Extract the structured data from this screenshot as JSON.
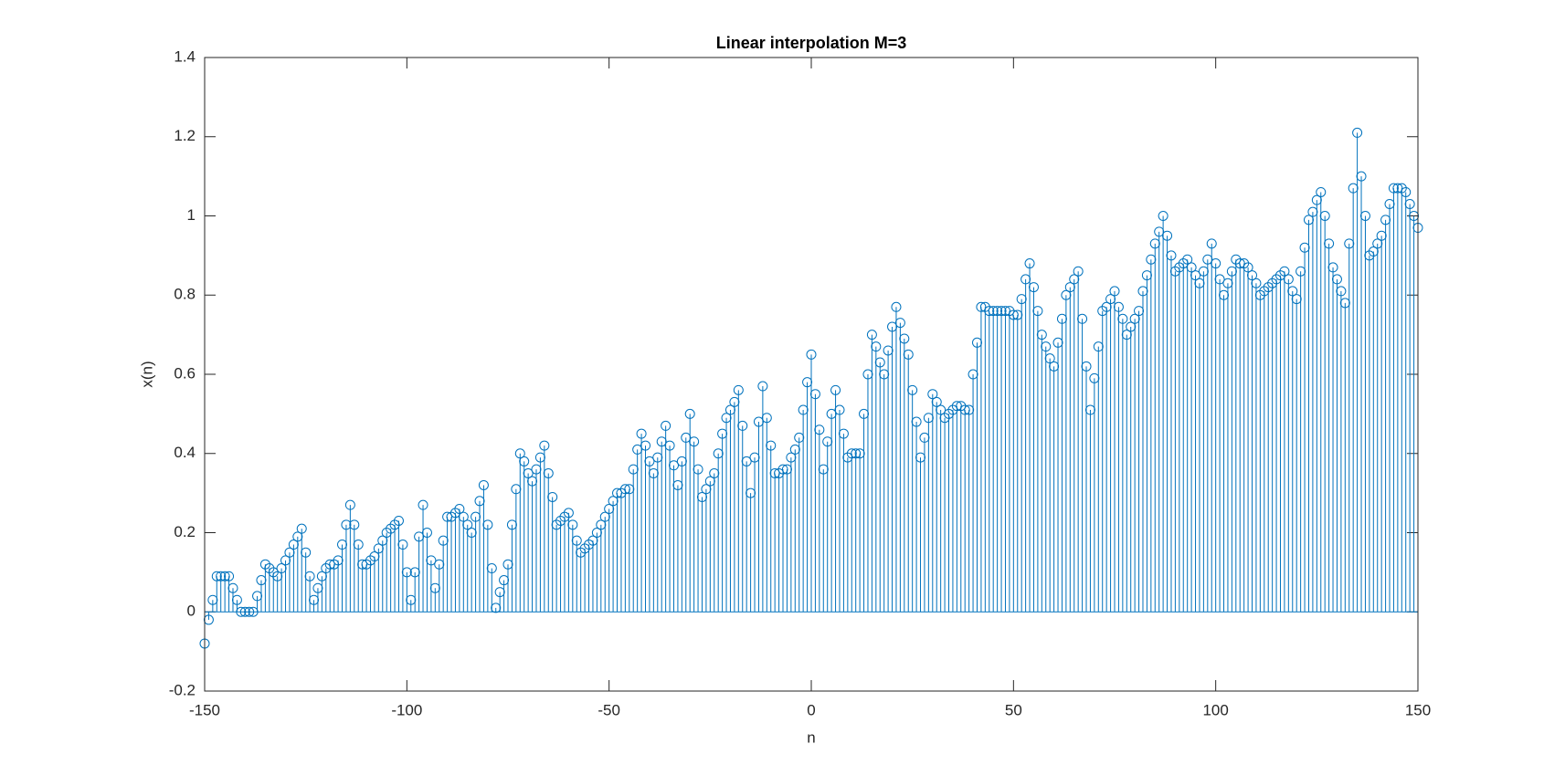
{
  "chart_data": {
    "type": "stem",
    "title": "Linear interpolation M=3",
    "xlabel": "n",
    "ylabel": "x(n)",
    "x": [
      -150,
      -149,
      -148,
      -147,
      -146,
      -145,
      -144,
      -143,
      -142,
      -141,
      -140,
      -139,
      -138,
      -137,
      -136,
      -135,
      -134,
      -133,
      -132,
      -131,
      -130,
      -129,
      -128,
      -127,
      -126,
      -125,
      -124,
      -123,
      -122,
      -121,
      -120,
      -119,
      -118,
      -117,
      -116,
      -115,
      -114,
      -113,
      -112,
      -111,
      -110,
      -109,
      -108,
      -107,
      -106,
      -105,
      -104,
      -103,
      -102,
      -101,
      -100,
      -99,
      -98,
      -97,
      -96,
      -95,
      -94,
      -93,
      -92,
      -91,
      -90,
      -89,
      -88,
      -87,
      -86,
      -85,
      -84,
      -83,
      -82,
      -81,
      -80,
      -79,
      -78,
      -77,
      -76,
      -75,
      -74,
      -73,
      -72,
      -71,
      -70,
      -69,
      -68,
      -67,
      -66,
      -65,
      -64,
      -63,
      -62,
      -61,
      -60,
      -59,
      -58,
      -57,
      -56,
      -55,
      -54,
      -53,
      -52,
      -51,
      -50,
      -49,
      -48,
      -47,
      -46,
      -45,
      -44,
      -43,
      -42,
      -41,
      -40,
      -39,
      -38,
      -37,
      -36,
      -35,
      -34,
      -33,
      -32,
      -31,
      -30,
      -29,
      -28,
      -27,
      -26,
      -25,
      -24,
      -23,
      -22,
      -21,
      -20,
      -19,
      -18,
      -17,
      -16,
      -15,
      -14,
      -13,
      -12,
      -11,
      -10,
      -9,
      -8,
      -7,
      -6,
      -5,
      -4,
      -3,
      -2,
      -1,
      0,
      1,
      2,
      3,
      4,
      5,
      6,
      7,
      8,
      9,
      10,
      11,
      12,
      13,
      14,
      15,
      16,
      17,
      18,
      19,
      20,
      21,
      22,
      23,
      24,
      25,
      26,
      27,
      28,
      29,
      30,
      31,
      32,
      33,
      34,
      35,
      36,
      37,
      38,
      39,
      40,
      41,
      42,
      43,
      44,
      45,
      46,
      47,
      48,
      49,
      50,
      51,
      52,
      53,
      54,
      55,
      56,
      57,
      58,
      59,
      60,
      61,
      62,
      63,
      64,
      65,
      66,
      67,
      68,
      69,
      70,
      71,
      72,
      73,
      74,
      75,
      76,
      77,
      78,
      79,
      80,
      81,
      82,
      83,
      84,
      85,
      86,
      87,
      88,
      89,
      90,
      91,
      92,
      93,
      94,
      95,
      96,
      97,
      98,
      99,
      100,
      101,
      102,
      103,
      104,
      105,
      106,
      107,
      108,
      109,
      110,
      111,
      112,
      113,
      114,
      115,
      116,
      117,
      118,
      119,
      120,
      121,
      122,
      123,
      124,
      125,
      126,
      127,
      128,
      129,
      130,
      131,
      132,
      133,
      134,
      135,
      136,
      137,
      138,
      139,
      140,
      141,
      142,
      143,
      144,
      145,
      146,
      147,
      148,
      149,
      150
    ],
    "values": [
      -0.08,
      -0.02,
      0.03,
      0.09,
      0.09,
      0.09,
      0.09,
      0.06,
      0.03,
      0.0,
      0.0,
      0.0,
      0.0,
      0.04,
      0.08,
      0.12,
      0.11,
      0.1,
      0.09,
      0.11,
      0.13,
      0.15,
      0.17,
      0.19,
      0.21,
      0.15,
      0.09,
      0.03,
      0.06,
      0.09,
      0.11,
      0.12,
      0.12,
      0.13,
      0.17,
      0.22,
      0.27,
      0.22,
      0.17,
      0.12,
      0.12,
      0.13,
      0.14,
      0.16,
      0.18,
      0.2,
      0.21,
      0.22,
      0.23,
      0.17,
      0.1,
      0.03,
      0.1,
      0.19,
      0.27,
      0.2,
      0.13,
      0.06,
      0.12,
      0.18,
      0.24,
      0.24,
      0.25,
      0.26,
      0.24,
      0.22,
      0.2,
      0.24,
      0.28,
      0.32,
      0.22,
      0.11,
      0.01,
      0.05,
      0.08,
      0.12,
      0.22,
      0.31,
      0.4,
      0.38,
      0.35,
      0.33,
      0.36,
      0.39,
      0.42,
      0.35,
      0.29,
      0.22,
      0.23,
      0.24,
      0.25,
      0.22,
      0.18,
      0.15,
      0.16,
      0.17,
      0.18,
      0.2,
      0.22,
      0.24,
      0.26,
      0.28,
      0.3,
      0.3,
      0.31,
      0.31,
      0.36,
      0.41,
      0.45,
      0.42,
      0.38,
      0.35,
      0.39,
      0.43,
      0.47,
      0.42,
      0.37,
      0.32,
      0.38,
      0.44,
      0.5,
      0.43,
      0.36,
      0.29,
      0.31,
      0.33,
      0.35,
      0.4,
      0.45,
      0.49,
      0.51,
      0.53,
      0.56,
      0.47,
      0.38,
      0.3,
      0.39,
      0.48,
      0.57,
      0.49,
      0.42,
      0.35,
      0.35,
      0.36,
      0.36,
      0.39,
      0.41,
      0.44,
      0.51,
      0.58,
      0.65,
      0.55,
      0.46,
      0.36,
      0.43,
      0.5,
      0.56,
      0.51,
      0.45,
      0.39,
      0.4,
      0.4,
      0.4,
      0.5,
      0.6,
      0.7,
      0.67,
      0.63,
      0.6,
      0.66,
      0.72,
      0.77,
      0.73,
      0.69,
      0.65,
      0.56,
      0.48,
      0.39,
      0.44,
      0.49,
      0.55,
      0.53,
      0.51,
      0.49,
      0.5,
      0.51,
      0.52,
      0.52,
      0.51,
      0.51,
      0.6,
      0.68,
      0.77,
      0.77,
      0.76,
      0.76,
      0.76,
      0.76,
      0.76,
      0.76,
      0.75,
      0.75,
      0.79,
      0.84,
      0.88,
      0.82,
      0.76,
      0.7,
      0.67,
      0.64,
      0.62,
      0.68,
      0.74,
      0.8,
      0.82,
      0.84,
      0.86,
      0.74,
      0.62,
      0.51,
      0.59,
      0.67,
      0.76,
      0.77,
      0.79,
      0.81,
      0.77,
      0.74,
      0.7,
      0.72,
      0.74,
      0.76,
      0.81,
      0.85,
      0.89,
      0.93,
      0.96,
      1.0,
      0.95,
      0.9,
      0.86,
      0.87,
      0.88,
      0.89,
      0.87,
      0.85,
      0.83,
      0.86,
      0.89,
      0.93,
      0.88,
      0.84,
      0.8,
      0.83,
      0.86,
      0.89,
      0.88,
      0.88,
      0.87,
      0.85,
      0.83,
      0.8,
      0.81,
      0.82,
      0.83,
      0.84,
      0.85,
      0.86,
      0.84,
      0.81,
      0.79,
      0.86,
      0.92,
      0.99,
      1.01,
      1.04,
      1.06,
      1.0,
      0.93,
      0.87,
      0.84,
      0.81,
      0.78,
      0.93,
      1.07,
      1.21,
      1.1,
      1.0,
      0.9,
      0.91,
      0.93,
      0.95,
      0.99,
      1.03,
      1.07,
      1.07,
      1.07,
      1.06,
      1.03,
      1.0,
      0.97
    ],
    "color": "#0072bd",
    "xlim": [
      -150,
      150
    ],
    "xticks": [
      -150,
      -100,
      -50,
      0,
      50,
      100,
      150
    ],
    "ylim": [
      -0.2,
      1.4
    ],
    "yticks": [
      -0.2,
      0,
      0.2,
      0.4,
      0.6,
      0.8,
      1,
      1.2,
      1.4
    ]
  }
}
